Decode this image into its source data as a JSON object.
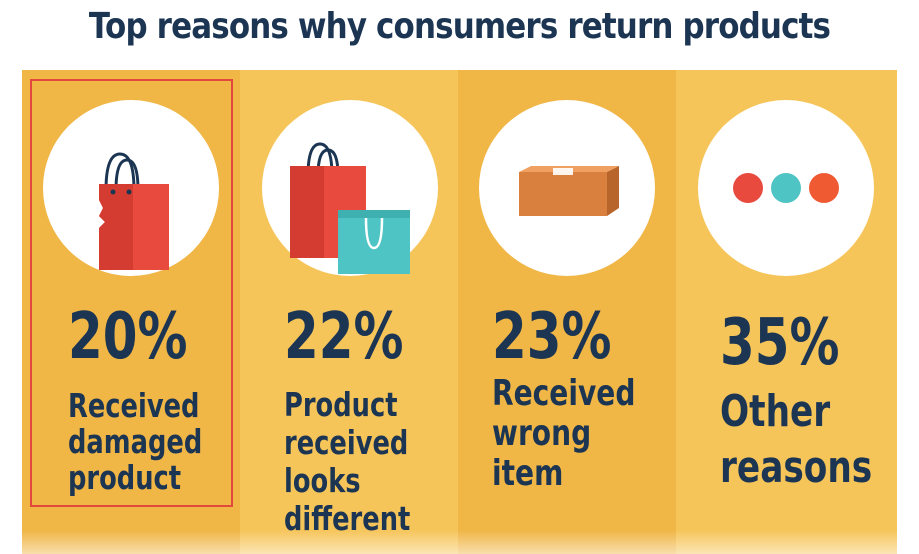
{
  "title": "Top reasons why consumers return products",
  "chart_data": {
    "type": "table",
    "title": "Top reasons why consumers return products",
    "categories": [
      "Received damaged product",
      "Product received looks different",
      "Received wrong item",
      "Other reasons"
    ],
    "values": [
      20,
      22,
      23,
      35
    ],
    "unit": "%",
    "items": [
      {
        "percent": "20%",
        "lines": [
          "Received",
          "damaged",
          "product"
        ],
        "icon": "torn-shopping-bag-icon",
        "highlighted": true
      },
      {
        "percent": "22%",
        "lines": [
          "Product",
          "received",
          "looks",
          "different"
        ],
        "icon": "shopping-bags-icon",
        "highlighted": false
      },
      {
        "percent": "23%",
        "lines": [
          "Received",
          "wrong",
          "item"
        ],
        "icon": "cardboard-box-icon",
        "highlighted": false
      },
      {
        "percent": "35%",
        "lines": [
          "Other",
          "reasons"
        ],
        "icon": "three-dots-icon",
        "highlighted": false
      }
    ]
  },
  "colors": {
    "background": "#f6c55a",
    "column_dark": "#f0b646",
    "text": "#1b3553",
    "highlight_border": "#e2483b",
    "red": "#e84a3d",
    "teal": "#4fc4c4",
    "orange": "#ef5a32",
    "box": "#d9803e"
  }
}
